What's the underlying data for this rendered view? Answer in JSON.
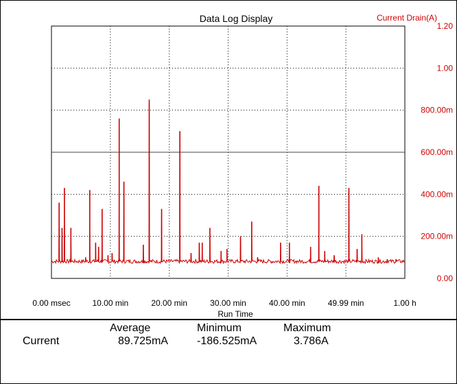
{
  "chart_data": {
    "type": "line",
    "title": "Data Log Display",
    "ylabel": "Current Drain(A)",
    "xlabel": "Run Time",
    "x_tick_labels": [
      "0.00 msec",
      "10.00 min",
      "20.00 min",
      "30.00 min",
      "40.00 min",
      "49.99 min",
      "1.00 h"
    ],
    "x_ticks_min": [
      0,
      10,
      20,
      30,
      40,
      49.99,
      60
    ],
    "xlim": [
      0,
      60
    ],
    "y_tick_labels": [
      "0.00",
      "200.00m",
      "400.00m",
      "600.00m",
      "800.00m",
      "1.00",
      "1.20"
    ],
    "y_ticks": [
      0,
      0.2,
      0.4,
      0.6,
      0.8,
      1.0,
      1.2
    ],
    "ylim": [
      0,
      1.2
    ],
    "baseline": 0.08,
    "series": [
      {
        "color": "#cc0000",
        "spikes": [
          [
            1.3,
            0.36
          ],
          [
            1.8,
            0.24
          ],
          [
            2.2,
            0.43
          ],
          [
            3.3,
            0.24
          ],
          [
            5.8,
            0.1
          ],
          [
            6.5,
            0.42
          ],
          [
            7.5,
            0.17
          ],
          [
            8.0,
            0.15
          ],
          [
            8.6,
            0.33
          ],
          [
            9.6,
            0.11
          ],
          [
            10.3,
            0.12
          ],
          [
            11.5,
            0.76
          ],
          [
            12.3,
            0.46
          ],
          [
            15.6,
            0.16
          ],
          [
            16.6,
            0.85
          ],
          [
            18.7,
            0.33
          ],
          [
            21.8,
            0.7
          ],
          [
            23.7,
            0.12
          ],
          [
            25.1,
            0.17
          ],
          [
            25.6,
            0.17
          ],
          [
            26.9,
            0.24
          ],
          [
            28.8,
            0.13
          ],
          [
            29.8,
            0.14
          ],
          [
            32.1,
            0.2
          ],
          [
            34.0,
            0.27
          ],
          [
            35.0,
            0.1
          ],
          [
            38.9,
            0.17
          ],
          [
            40.4,
            0.17
          ],
          [
            44.0,
            0.15
          ],
          [
            45.4,
            0.44
          ],
          [
            46.4,
            0.13
          ],
          [
            48.0,
            0.11
          ],
          [
            50.5,
            0.43
          ],
          [
            51.9,
            0.14
          ],
          [
            52.7,
            0.21
          ],
          [
            55.5,
            0.1
          ],
          [
            57.0,
            0.09
          ],
          [
            58.5,
            0.09
          ]
        ]
      }
    ],
    "grid": true
  },
  "stats": {
    "headers": [
      "Average",
      "Minimum",
      "Maximum"
    ],
    "row_label": "Current",
    "values": [
      "89.725mA",
      "-186.525mA",
      "3.786A"
    ]
  }
}
